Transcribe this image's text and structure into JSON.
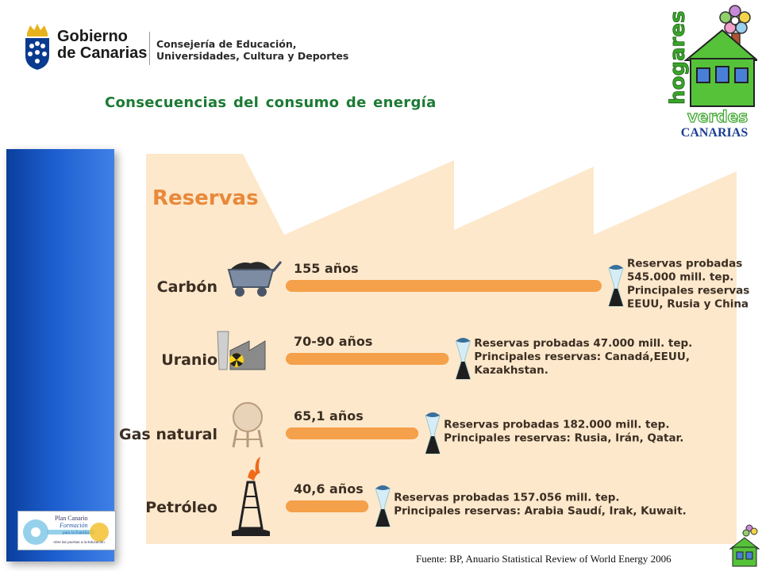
{
  "header": {
    "government_name_line1": "Gobierno",
    "government_name_line2": "de Canarias",
    "department_line1": "Consejería de Educación,",
    "department_line2": "Universidades, Cultura y Deportes",
    "slide_title": "Consecuencias del consumo de energía"
  },
  "logos": {
    "hogares_text": "hogares",
    "verdes_text": "verdes",
    "canarias_text": "CANARIAS",
    "plan_line1": "Plan Canario",
    "plan_line2": "Formación",
    "plan_line3": "para la Familia",
    "plan_line4": "Abre las puertas a la Educación"
  },
  "colors": {
    "title_green": "#1c7a34",
    "bar_orange": "#f5a04a",
    "panel_beige": "#fde8cc",
    "blue_bar": "#1d5fd0",
    "text_dark": "#3b2e22"
  },
  "chart_data": {
    "type": "bar",
    "orientation": "horizontal",
    "title": "Reservas",
    "categories": [
      "Carbón",
      "Uranio",
      "Gas natural",
      "Petróleo"
    ],
    "values": [
      155,
      80,
      65.1,
      40.6
    ],
    "value_labels": [
      "155 años",
      "70-90 años",
      "65,1 años",
      "40,6 años"
    ],
    "unit": "años",
    "xlim": [
      0,
      155
    ],
    "grid": false,
    "icons": [
      "coal-cart-icon",
      "nuclear-plant-icon",
      "gas-tank-icon",
      "oil-rig-icon"
    ],
    "annotations": [
      [
        "Reservas probadas",
        "545.000 mill. tep.",
        "Principales reservas",
        "EEUU, Rusia y China."
      ],
      [
        "Reservas probadas 47.000 mill. tep.",
        "Principales reservas: Canadá,EEUU,",
        "Kazakhstan."
      ],
      [
        "Reservas probadas 182.000 mill. tep.",
        "Principales reservas: Rusia, Irán, Qatar."
      ],
      [
        "Reservas probadas 157.056 mill. tep.",
        "Principales reservas: Arabia Saudí, Irak, Kuwait."
      ]
    ]
  },
  "footer": {
    "source": "Fuente: BP, Anuario Statistical Review of World Energy 2006"
  }
}
